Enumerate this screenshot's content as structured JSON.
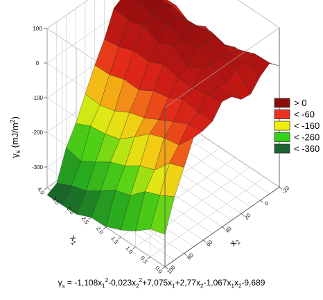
{
  "chart_data": {
    "type": "surface",
    "title": "",
    "equation": {
      "lhs": "γ",
      "lhs_sub": "s",
      "parts": [
        {
          "t": " = -1,108x"
        },
        {
          "sub": "1"
        },
        {
          "sup": "2"
        },
        {
          "t": "-0,023x"
        },
        {
          "sub": "2"
        },
        {
          "sup": "2"
        },
        {
          "t": "+7,075x"
        },
        {
          "sub": "1"
        },
        {
          "t": "+2,77x"
        },
        {
          "sub": "2"
        },
        {
          "t": "-1,067x"
        },
        {
          "sub": "1"
        },
        {
          "t": "x"
        },
        {
          "sub": "2"
        },
        {
          "t": "-9,689"
        }
      ],
      "coefficients": {
        "x1_sq": -1.108,
        "x2_sq": -0.023,
        "x1": 7.075,
        "x2": 2.77,
        "x1x2": -1.067,
        "const": -9.689
      }
    },
    "x1_axis": {
      "label": "x",
      "label_sub": "1",
      "range": [
        0,
        4
      ],
      "ticks": [
        "0.0",
        "0.5",
        "1.0",
        "1.5",
        "2.0",
        "2.5",
        "3.0",
        "3.5",
        "4.0"
      ]
    },
    "x2_axis": {
      "label": "x",
      "label_sub": "2",
      "range": [
        -20,
        100
      ],
      "ticks": [
        "-20",
        "0",
        "20",
        "40",
        "60",
        "80",
        "100"
      ]
    },
    "z_axis": {
      "label": "γ",
      "label_sub": "s",
      "label_rest": " (mJ/m",
      "label_sup": "2",
      "label_end": ")",
      "range": [
        -360,
        100
      ],
      "ticks": [
        "-300",
        "-200",
        "-100",
        "0",
        "100"
      ]
    },
    "legend": {
      "placement": "right",
      "entries": [
        {
          "label": "> 0",
          "color": "#8b0d0d"
        },
        {
          "label": "< -60",
          "color": "#f0301e"
        },
        {
          "label": "< -160",
          "color": "#f0f00a"
        },
        {
          "label": "< -260",
          "color": "#32d214"
        },
        {
          "label": "< -360",
          "color": "#1a6432"
        }
      ]
    },
    "grid": true,
    "x1_samples": [
      0,
      0.5,
      1.0,
      1.5,
      2.0,
      2.5,
      3.0,
      3.5,
      4.0
    ],
    "x2_samples": [
      -20,
      -10,
      0,
      10,
      20,
      30,
      40,
      50,
      60,
      70,
      80,
      90,
      100
    ],
    "z_values": [
      [
        -9.9,
        17.1,
        -2.3,
        -34.2,
        -30.3,
        -3.3,
        1.9,
        -35.6,
        -43.9,
        -44.5,
        -111.6,
        -177.2,
        -266.5
      ],
      [
        -28.5,
        14.8,
        11.5,
        7.6,
        -10.7,
        -5.6,
        -5.2,
        -38.1,
        -53.4,
        -94.3,
        -128.1,
        -201.1,
        -279.9
      ],
      [
        -42.4,
        -2.7,
        6.2,
        20.6,
        13.8,
        20.2,
        -16.3,
        -29.0,
        -74.9,
        -102.6,
        -175.7,
        -219.1,
        -314.0
      ],
      [
        -42.0,
        -17.2,
        27.1,
        31.1,
        37.8,
        0.9,
        -15.1,
        -52.8,
        -97.6,
        -119.7,
        -192.5,
        -259.4,
        -339.5
      ],
      [
        -59.9,
        -5.4,
        22.4,
        47.6,
        25.1,
        30.0,
        -4.4,
        -62.2,
        -120.9,
        -156.5,
        -221.1,
        -272.2,
        -358.0
      ],
      [
        -38.8,
        -23.0,
        19.2,
        44.1,
        44.0,
        12.4,
        -24.6,
        -87.7,
        -133.8,
        -191.9,
        -239.0,
        -302.4,
        -360.0
      ],
      [
        -62.0,
        -20.2,
        29.6,
        50.7,
        44.0,
        32.0,
        -23.1,
        -86.4,
        -158.1,
        -205.4,
        -267.2,
        -331.2,
        -379.6
      ],
      [
        -35.7,
        -14.2,
        27.8,
        49.6,
        59.4,
        17.8,
        -38.7,
        -101.0,
        -169.2,
        -211.0,
        -293.4,
        -344.9,
        -380.6
      ],
      [
        -36.6,
        -16.0,
        18.6,
        42.8,
        40.8,
        23.9,
        -46.6,
        -101.8,
        -165.8,
        -231.8,
        -282.7,
        -366.1,
        -381.2
      ]
    ]
  }
}
